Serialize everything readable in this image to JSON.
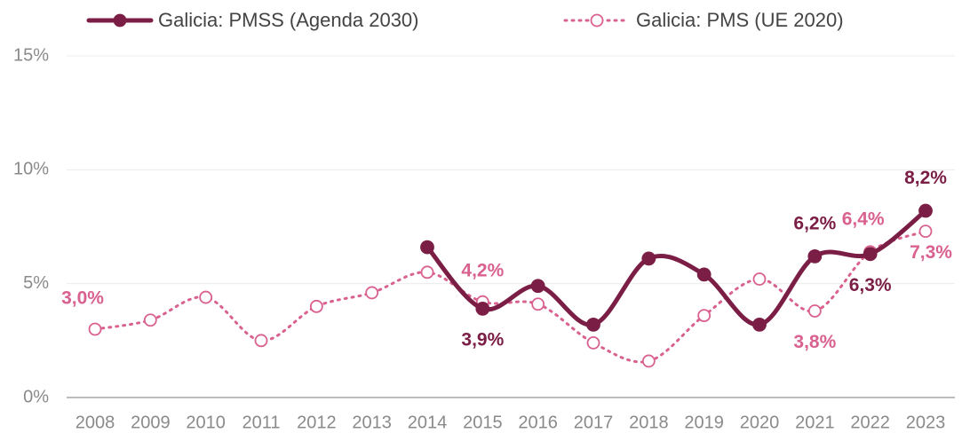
{
  "chart_data": {
    "type": "line",
    "categories": [
      "2008",
      "2009",
      "2010",
      "2011",
      "2012",
      "2013",
      "2014",
      "2015",
      "2016",
      "2017",
      "2018",
      "2019",
      "2020",
      "2021",
      "2022",
      "2023"
    ],
    "series": [
      {
        "name": "Galicia: PMSS (Agenda 2030)",
        "color": "#7b1e45",
        "style": "solid",
        "marker": "filled",
        "values": [
          null,
          null,
          null,
          null,
          null,
          null,
          6.6,
          3.9,
          4.9,
          3.2,
          6.1,
          5.4,
          3.2,
          6.2,
          6.3,
          8.2
        ],
        "value_labels": [
          null,
          null,
          null,
          null,
          null,
          null,
          null,
          "3,9%",
          null,
          null,
          null,
          null,
          null,
          "6,2%",
          "6,3%",
          "8,2%"
        ]
      },
      {
        "name": "Galicia: PMS (UE 2020)",
        "color": "#d9618f",
        "style": "dotted",
        "marker": "open",
        "values": [
          3.0,
          3.4,
          4.4,
          2.5,
          4.0,
          4.6,
          5.5,
          4.2,
          4.1,
          2.4,
          1.6,
          3.6,
          5.2,
          3.8,
          6.4,
          7.3
        ],
        "value_labels": [
          "3,0%",
          null,
          null,
          null,
          null,
          null,
          null,
          "4,2%",
          null,
          null,
          null,
          null,
          null,
          "3,8%",
          "6,4%",
          "7,3%"
        ]
      }
    ],
    "ylim": [
      0,
      15
    ],
    "yticks": [
      {
        "value": 0,
        "label": "0%"
      },
      {
        "value": 5,
        "label": "5%"
      },
      {
        "value": 10,
        "label": "10%"
      },
      {
        "value": 15,
        "label": "15%"
      }
    ],
    "grid": true,
    "legend": "top"
  }
}
